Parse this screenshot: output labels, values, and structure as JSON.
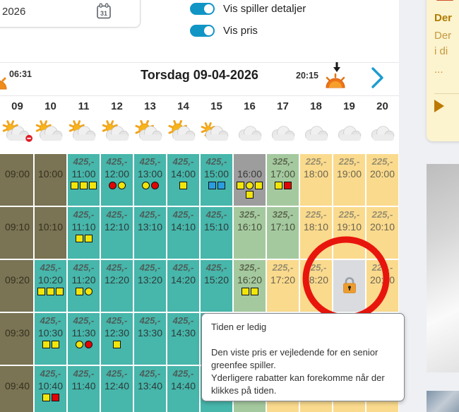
{
  "topbar": {
    "date_value": "2026",
    "calendar_icon": "calendar-31",
    "toggles": [
      {
        "label": "Vis spiller detaljer",
        "on": true
      },
      {
        "label": "Vis pris",
        "on": true
      }
    ]
  },
  "day_header": {
    "sunrise_time": "06:31",
    "title": "Torsdag 09-04-2026",
    "sunset_time": "20:15"
  },
  "hours": [
    "09",
    "10",
    "11",
    "12",
    "13",
    "14",
    "15",
    "16",
    "17",
    "18",
    "19",
    "20"
  ],
  "weather": [
    "sun-cloud-minus",
    "sun-cloud",
    "sun-cloud",
    "sun-cloud",
    "sun-big-cloud",
    "sun-big-cloud",
    "sun-small-cloud",
    "cloud",
    "cloud",
    "cloud",
    "cloud",
    "cloud"
  ],
  "grid": {
    "rows": [
      {
        "label": ":00",
        "cells": [
          {
            "time": "09:00",
            "price": "",
            "type": "olive",
            "markers": []
          },
          {
            "time": "10:00",
            "price": "",
            "type": "olive",
            "markers": []
          },
          {
            "time": "11:00",
            "price": "425,-",
            "type": "teal",
            "markers": [
              "sq-yellow",
              "sq-yellow",
              "sq-yellow"
            ]
          },
          {
            "time": "12:00",
            "price": "425,-",
            "type": "teal",
            "markers": [
              "ci-red",
              "ci-yellow"
            ]
          },
          {
            "time": "13:00",
            "price": "425,-",
            "type": "teal",
            "markers": [
              "ci-yellow",
              "ci-red"
            ]
          },
          {
            "time": "14:00",
            "price": "425,-",
            "type": "teal",
            "markers": [
              "sq-yellow"
            ]
          },
          {
            "time": "15:00",
            "price": "425,-",
            "type": "teal",
            "markers": [
              "sq-blue",
              "sq-blue"
            ]
          },
          {
            "time": "16:00",
            "price": "",
            "type": "gray",
            "markers": [
              "sq-yellow",
              "ci-yellow",
              "sq-yellow",
              "sq-yellow"
            ]
          },
          {
            "time": "17:00",
            "price": "325,-",
            "type": "green",
            "markers": [
              "sq-yellow",
              "sq-red"
            ]
          },
          {
            "time": "18:00",
            "price": "225,-",
            "type": "cream",
            "markers": []
          },
          {
            "time": "19:00",
            "price": "225,-",
            "type": "cream",
            "markers": []
          },
          {
            "time": "20:00",
            "price": "225,-",
            "type": "cream",
            "markers": []
          }
        ]
      },
      {
        "label": ":10",
        "cells": [
          {
            "time": "09:10",
            "price": "",
            "type": "olive",
            "markers": []
          },
          {
            "time": "10:10",
            "price": "",
            "type": "olive",
            "markers": []
          },
          {
            "time": "11:10",
            "price": "425,-",
            "type": "teal",
            "markers": [
              "sq-yellow",
              "sq-yellow"
            ]
          },
          {
            "time": "12:10",
            "price": "425,-",
            "type": "teal",
            "markers": []
          },
          {
            "time": "13:10",
            "price": "425,-",
            "type": "teal",
            "markers": []
          },
          {
            "time": "14:10",
            "price": "425,-",
            "type": "teal",
            "markers": []
          },
          {
            "time": "15:10",
            "price": "425,-",
            "type": "teal",
            "markers": []
          },
          {
            "time": "16:10",
            "price": "325,-",
            "type": "green",
            "markers": []
          },
          {
            "time": "17:10",
            "price": "325,-",
            "type": "green",
            "markers": []
          },
          {
            "time": "18:10",
            "price": "225,-",
            "type": "cream",
            "markers": []
          },
          {
            "time": "19:10",
            "price": "225,-",
            "type": "cream",
            "markers": []
          },
          {
            "time": "20:10",
            "price": "225,-",
            "type": "cream",
            "markers": []
          }
        ]
      },
      {
        "label": ":20",
        "cells": [
          {
            "time": "09:20",
            "price": "",
            "type": "olive",
            "markers": []
          },
          {
            "time": "10:20",
            "price": "425,-",
            "type": "teal",
            "markers": [
              "sq-yellow",
              "sq-yellow",
              "sq-yellow"
            ]
          },
          {
            "time": "11:20",
            "price": "425,-",
            "type": "teal",
            "markers": [
              "sq-yellow",
              "ci-yellow"
            ]
          },
          {
            "time": "12:20",
            "price": "425,-",
            "type": "teal",
            "markers": []
          },
          {
            "time": "13:20",
            "price": "425,-",
            "type": "teal",
            "markers": []
          },
          {
            "time": "14:20",
            "price": "425,-",
            "type": "teal",
            "markers": []
          },
          {
            "time": "15:20",
            "price": "425,-",
            "type": "teal",
            "markers": []
          },
          {
            "time": "16:20",
            "price": "325,-",
            "type": "green",
            "markers": [
              "sq-yellow",
              "sq-yellow"
            ]
          },
          {
            "time": "17:20",
            "price": "225,-",
            "type": "cream",
            "markers": []
          },
          {
            "time": "18:20",
            "price": "225,-",
            "type": "cream",
            "markers": []
          },
          {
            "time": "19:20",
            "price": "",
            "type": "locked",
            "markers": []
          },
          {
            "time": "20:20",
            "price": "225,-",
            "type": "cream",
            "markers": []
          }
        ]
      },
      {
        "label": ":30",
        "cells": [
          {
            "time": "09:30",
            "price": "",
            "type": "olive",
            "markers": []
          },
          {
            "time": "10:30",
            "price": "425,-",
            "type": "teal",
            "markers": [
              "sq-yellow",
              "sq-yellow"
            ]
          },
          {
            "time": "11:30",
            "price": "425,-",
            "type": "teal",
            "markers": [
              "ci-yellow",
              "ci-red"
            ]
          },
          {
            "time": "12:30",
            "price": "425,-",
            "type": "teal",
            "markers": [
              "sq-yellow"
            ]
          },
          {
            "time": "13:30",
            "price": "425,-",
            "type": "teal",
            "markers": []
          },
          {
            "time": "14:30",
            "price": "425,-",
            "type": "teal",
            "markers": []
          },
          {
            "time": "",
            "price": "",
            "type": "teal",
            "markers": []
          },
          {
            "time": "",
            "price": "",
            "type": "green",
            "markers": []
          },
          {
            "time": "",
            "price": "",
            "type": "green",
            "markers": []
          },
          {
            "time": "",
            "price": "",
            "type": "cream",
            "markers": []
          },
          {
            "time": "",
            "price": "",
            "type": "cream",
            "markers": []
          },
          {
            "time": "",
            "price": "",
            "type": "cream",
            "markers": []
          }
        ]
      },
      {
        "label": ":40",
        "cells": [
          {
            "time": "09:40",
            "price": "",
            "type": "olive",
            "markers": []
          },
          {
            "time": "10:40",
            "price": "425,-",
            "type": "teal",
            "markers": [
              "sq-yellow",
              "sq-red"
            ]
          },
          {
            "time": "11:40",
            "price": "425,-",
            "type": "teal",
            "markers": []
          },
          {
            "time": "12:40",
            "price": "425,-",
            "type": "teal",
            "markers": []
          },
          {
            "time": "13:40",
            "price": "425,-",
            "type": "teal",
            "markers": []
          },
          {
            "time": "14:40",
            "price": "425,-",
            "type": "teal",
            "markers": []
          },
          {
            "time": "",
            "price": "",
            "type": "teal",
            "markers": []
          },
          {
            "time": "",
            "price": "",
            "type": "green",
            "markers": []
          },
          {
            "time": "",
            "price": "",
            "type": "cream",
            "markers": []
          },
          {
            "time": "",
            "price": "",
            "type": "cream",
            "markers": []
          },
          {
            "time": "",
            "price": "",
            "type": "cream",
            "markers": []
          },
          {
            "time": "",
            "price": "",
            "type": "cream",
            "markers": []
          }
        ]
      }
    ]
  },
  "tooltip": {
    "lines": [
      "Tiden er ledig",
      "",
      "Den viste pris er vejledende for en senior",
      "greenfee spiller.",
      "Yderligere rabatter kan forekomme når der",
      "klikkes på tiden."
    ]
  },
  "side_panel": {
    "warning_icon": "warning-triangle",
    "lines": [
      {
        "text": "Der",
        "bold": true
      },
      {
        "text": "Der",
        "bold": false
      },
      {
        "text": "i di",
        "bold": false
      },
      {
        "text": "...",
        "bold": false
      }
    ],
    "play_icon": "play-triangle"
  },
  "colors": {
    "toggle_accent": "#1095c5",
    "chevron_blue": "#1b9cd0",
    "annotation_circle": "#e8150d",
    "cell_teal": "#47b6ab",
    "cell_olive": "#7a7354",
    "cell_green": "#a5c99f",
    "cell_cream": "#fada8d",
    "cell_booked_gray": "#9d9d9d",
    "cell_locked_gray": "#d9dbde",
    "marker_yellow": "#f2e50b",
    "marker_red": "#e10505",
    "marker_blue": "#2a9de0",
    "lock_orange": "#ec9d2f"
  }
}
